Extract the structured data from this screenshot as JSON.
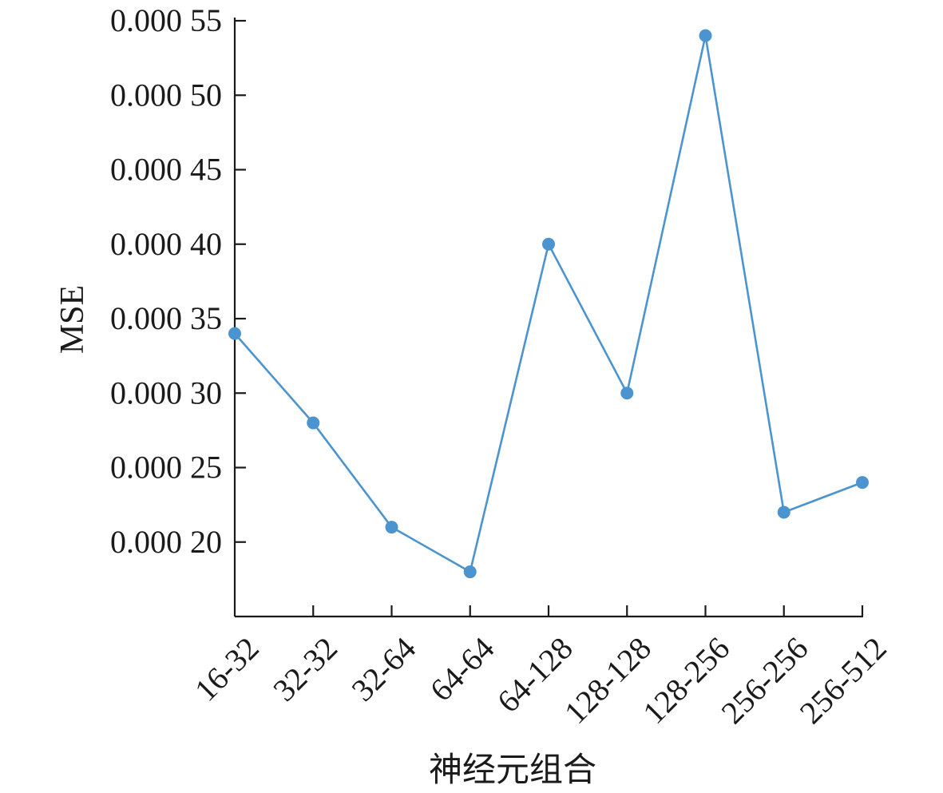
{
  "chart_data": {
    "type": "line",
    "xlabel": "神经元组合",
    "ylabel": "MSE",
    "categories": [
      "16-32",
      "32-32",
      "32-64",
      "64-64",
      "64-128",
      "128-128",
      "128-256",
      "256-256",
      "256-512"
    ],
    "series": [
      {
        "color": "#4b94cf",
        "values": [
          0.00034,
          0.00028,
          0.00021,
          0.00018,
          0.0004,
          0.0003,
          0.00054,
          0.00022,
          0.00024
        ]
      }
    ],
    "yticks": [
      0.0002,
      0.00025,
      0.0003,
      0.00035,
      0.0004,
      0.00045,
      0.0005,
      0.00055
    ],
    "ytick_labels": [
      "0.000 20",
      "0.000 25",
      "0.000 30",
      "0.000 35",
      "0.000 40",
      "0.000 45",
      "0.000 50",
      "0.000 55"
    ],
    "ylim": [
      0.00015,
      0.00055
    ],
    "grid": false,
    "legend": "none"
  }
}
